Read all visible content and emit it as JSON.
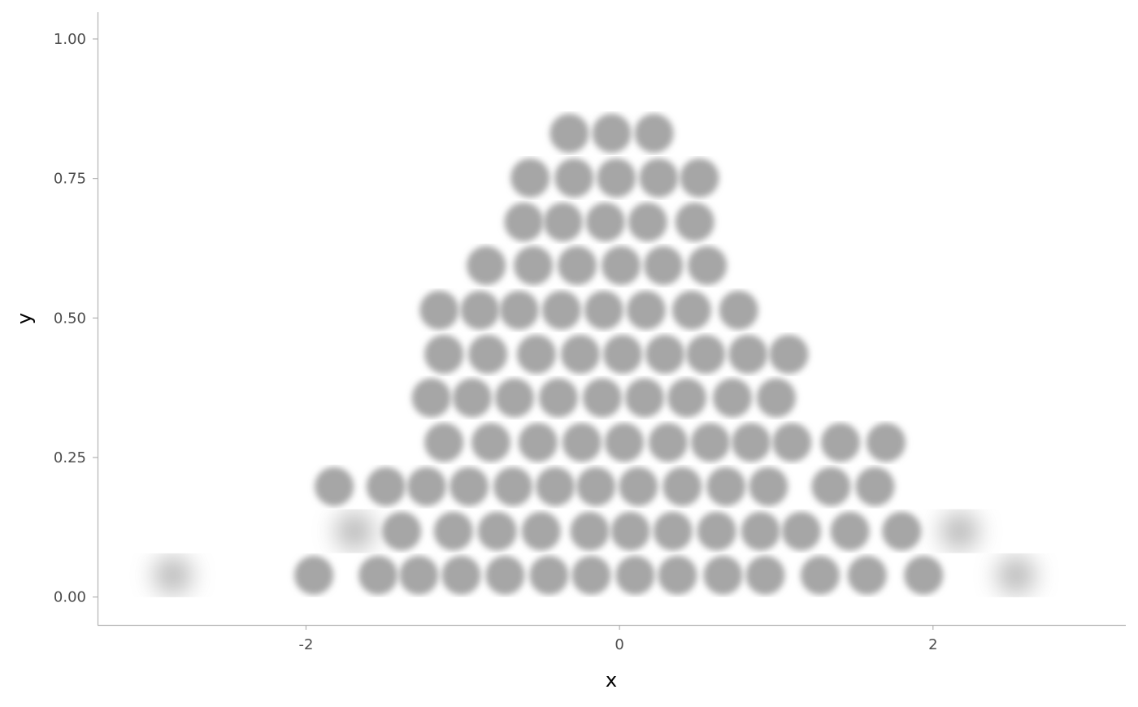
{
  "chart_data": {
    "type": "scatter",
    "style": "blurred dot rows",
    "xlabel": "x",
    "ylabel": "y",
    "xlim": [
      -3.33,
      3.23
    ],
    "ylim": [
      -0.05,
      1.048
    ],
    "x_ticks": [
      {
        "value": -2,
        "label": "-2"
      },
      {
        "value": 0,
        "label": "0"
      },
      {
        "value": 2,
        "label": "2"
      }
    ],
    "y_ticks": [
      {
        "value": 0,
        "label": "0.00"
      },
      {
        "value": 0.25,
        "label": "0.25"
      },
      {
        "value": 0.5,
        "label": "0.50"
      },
      {
        "value": 0.75,
        "label": "0.75"
      },
      {
        "value": 1,
        "label": "1.00"
      }
    ],
    "grid": false,
    "dot_color": "#a6a6a6",
    "rows": [
      {
        "y": 0.039,
        "x": [
          -2.85,
          -1.95,
          -1.54,
          -1.28,
          -1.01,
          -0.73,
          -0.45,
          -0.18,
          0.1,
          0.37,
          0.66,
          0.93,
          1.28,
          1.58,
          1.94,
          2.53
        ]
      },
      {
        "y": 0.118,
        "x": [
          -1.69,
          -1.39,
          -1.06,
          -0.78,
          -0.5,
          -0.19,
          0.07,
          0.34,
          0.62,
          0.9,
          1.16,
          1.47,
          1.8,
          2.17
        ]
      },
      {
        "y": 0.198,
        "x": [
          -1.82,
          -1.49,
          -1.23,
          -0.96,
          -0.68,
          -0.41,
          -0.15,
          0.12,
          0.4,
          0.68,
          0.95,
          1.35,
          1.63
        ]
      },
      {
        "y": 0.277,
        "x": [
          -1.12,
          -0.82,
          -0.52,
          -0.24,
          0.03,
          0.31,
          0.58,
          0.84,
          1.1,
          1.41,
          1.7
        ]
      },
      {
        "y": 0.357,
        "x": [
          -1.2,
          -0.94,
          -0.67,
          -0.39,
          -0.11,
          0.16,
          0.43,
          0.72,
          1.0
        ]
      },
      {
        "y": 0.435,
        "x": [
          -1.12,
          -0.84,
          -0.53,
          -0.25,
          0.02,
          0.29,
          0.55,
          0.82,
          1.08
        ]
      },
      {
        "y": 0.514,
        "x": [
          -1.15,
          -0.89,
          -0.64,
          -0.37,
          -0.1,
          0.17,
          0.46,
          0.76
        ]
      },
      {
        "y": 0.594,
        "x": [
          -0.85,
          -0.55,
          -0.27,
          0.01,
          0.28,
          0.56
        ]
      },
      {
        "y": 0.672,
        "x": [
          -0.61,
          -0.36,
          -0.09,
          0.18,
          0.48
        ]
      },
      {
        "y": 0.751,
        "x": [
          -0.57,
          -0.29,
          -0.02,
          0.25,
          0.51
        ]
      },
      {
        "y": 0.831,
        "x": [
          -0.32,
          -0.05,
          0.22
        ]
      }
    ]
  }
}
